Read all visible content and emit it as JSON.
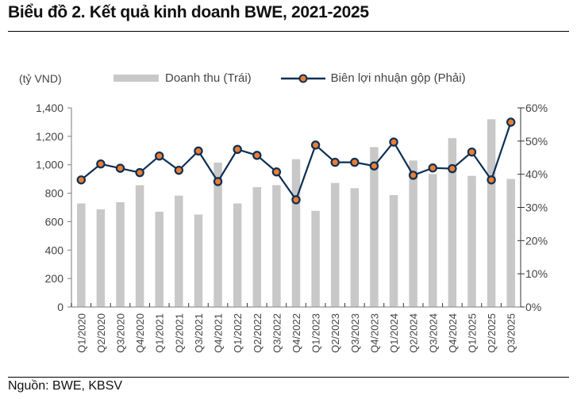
{
  "header": {
    "title": "Biểu đồ 2. Kết quả kinh doanh BWE, 2021-2025"
  },
  "footer": {
    "source": "Nguồn: BWE, KBSV"
  },
  "legend": {
    "unit": "(tỷ VND)",
    "bar_label": "Doanh thu (Trái)",
    "line_label": "Biên lợi nhuận gộp (Phải)"
  },
  "colors": {
    "bar": "#c8c8c8",
    "line": "#0d2f55",
    "marker_fill": "#ed7d31",
    "axis": "#a6a6a6"
  },
  "chart_data": {
    "type": "bar+line",
    "title": "Biểu đồ 2. Kết quả kinh doanh BWE, 2021-2025",
    "xlabel": "",
    "ylabel": "(tỷ VND)",
    "y2label": "",
    "ylim": [
      0,
      1400
    ],
    "y_ticks": [
      "0",
      "200",
      "400",
      "600",
      "800",
      "1,000",
      "1,200",
      "1,400"
    ],
    "y2lim": [
      0,
      60
    ],
    "y2_ticks": [
      "0%",
      "10%",
      "20%",
      "30%",
      "40%",
      "50%",
      "60%"
    ],
    "grid": false,
    "legend_position": "top",
    "categories": [
      "Q1/2020",
      "Q2/2020",
      "Q3/2020",
      "Q4/2020",
      "Q1/2021",
      "Q2/2021",
      "Q3/2021",
      "Q4/2021",
      "Q1/2022",
      "Q2/2022",
      "Q3/2022",
      "Q4/2022",
      "Q1/2023",
      "Q2/2023",
      "Q3/2023",
      "Q4/2023",
      "Q1/2024",
      "Q2/2024",
      "Q3/2024",
      "Q4/2024",
      "Q1/2025",
      "Q2/2025",
      "Q3/2025"
    ],
    "series": [
      {
        "name": "Doanh thu (Trái)",
        "type": "bar",
        "axis": "left",
        "values": [
          728,
          687,
          737,
          856,
          670,
          783,
          650,
          1015,
          728,
          843,
          857,
          1039,
          676,
          872,
          835,
          1124,
          787,
          1030,
          935,
          1187,
          922,
          1320,
          900
        ]
      },
      {
        "name": "Biên lợi nhuận gộp (Phải)",
        "type": "line",
        "axis": "right",
        "unit": "%",
        "values": [
          38.3,
          43.1,
          41.8,
          40.5,
          45.5,
          41.2,
          47.0,
          37.8,
          47.5,
          45.7,
          40.7,
          32.3,
          48.8,
          43.6,
          43.6,
          42.5,
          49.7,
          39.7,
          41.9,
          41.7,
          46.7,
          38.3,
          55.7
        ]
      }
    ]
  }
}
